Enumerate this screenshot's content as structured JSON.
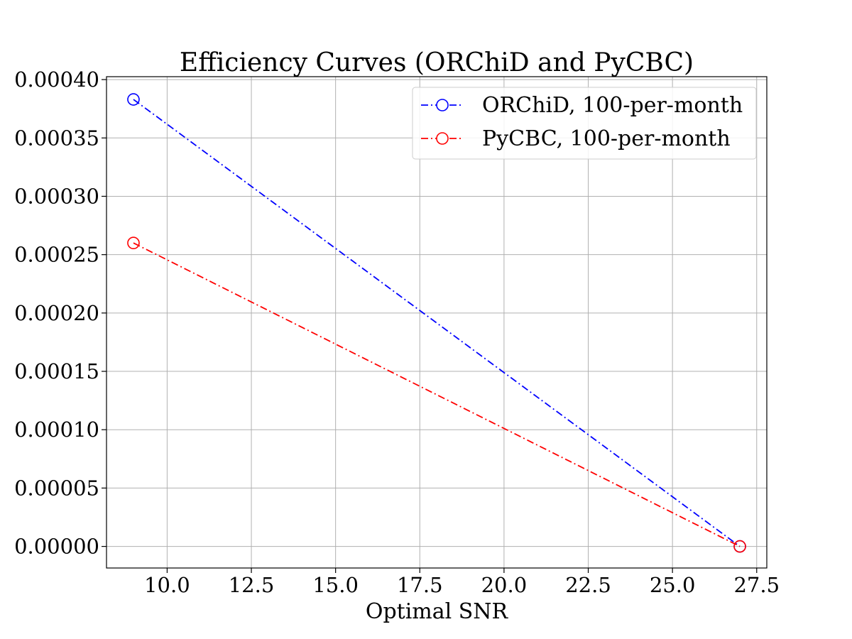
{
  "chart_data": {
    "type": "line",
    "title": "Efficiency Curves (ORChiD and PyCBC)",
    "xlabel": "Optimal SNR",
    "ylabel": "",
    "xlim": [
      8.2,
      27.8
    ],
    "ylim": [
      -1.85e-05,
      0.0004025
    ],
    "x_ticks": [
      10.0,
      12.5,
      15.0,
      17.5,
      20.0,
      22.5,
      25.0,
      27.5
    ],
    "x_tick_labels": [
      "10.0",
      "12.5",
      "15.0",
      "17.5",
      "20.0",
      "22.5",
      "25.0",
      "27.5"
    ],
    "y_ticks": [
      0,
      5e-05,
      0.0001,
      0.00015,
      0.0002,
      0.00025,
      0.0003,
      0.00035,
      0.0004
    ],
    "y_tick_labels": [
      "0.00000",
      "0.00005",
      "0.00010",
      "0.00015",
      "0.00020",
      "0.00025",
      "0.00030",
      "0.00035",
      "0.00040"
    ],
    "grid": true,
    "legend_position": "top-right",
    "series": [
      {
        "name": "ORChiD, 100-per-month",
        "color": "#0000ff",
        "marker": "open-circle",
        "linestyle": "dash-dot",
        "x": [
          9.0,
          27.0
        ],
        "y": [
          0.000383,
          0.0
        ]
      },
      {
        "name": "PyCBC, 100-per-month",
        "color": "#ff0000",
        "marker": "open-circle",
        "linestyle": "dash-dot",
        "x": [
          9.0,
          27.0
        ],
        "y": [
          0.00026,
          0.0
        ]
      }
    ]
  }
}
